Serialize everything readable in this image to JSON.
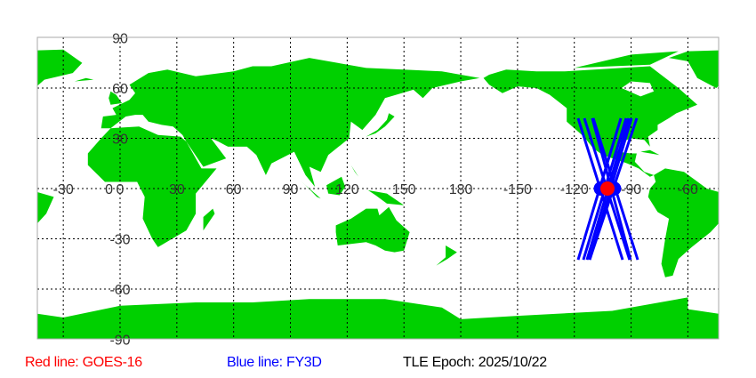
{
  "map": {
    "land_color": "#00d000",
    "grid_color": "#000000",
    "longitude_labels": [
      "-30",
      "0",
      "30",
      "60",
      "90",
      "120",
      "150",
      "180",
      "-150",
      "-120",
      "-90",
      "-60"
    ],
    "longitude_values": [
      -30,
      0,
      30,
      60,
      90,
      120,
      150,
      180,
      210,
      240,
      270,
      300
    ],
    "latitude_labels": [
      "90",
      "60",
      "30",
      "0",
      "-30",
      "-60",
      "-90"
    ],
    "latitude_values": [
      90,
      60,
      30,
      0,
      -30,
      -60,
      -90
    ]
  },
  "satellites": [
    {
      "name": "GOES-16",
      "color": "#ff0000",
      "lon": -102.5,
      "lat": 0
    },
    {
      "name": "FY3D",
      "color": "#0000ff",
      "lon": -106,
      "lat": 0
    },
    {
      "name": "FY3D",
      "color": "#0000ff",
      "lon": -99,
      "lat": 0
    }
  ],
  "orbit_tracks": {
    "color": "#0000ff",
    "segments": [
      [
        [
          -118,
          42
        ],
        [
          -94.5,
          -42.5
        ]
      ],
      [
        [
          -114.7,
          42
        ],
        [
          -90.8,
          -42.5
        ]
      ],
      [
        [
          -110.5,
          42
        ],
        [
          -90.3,
          -42.5
        ]
      ],
      [
        [
          -110,
          42
        ],
        [
          -86.5,
          -42.5
        ]
      ],
      [
        [
          -95.4,
          42
        ],
        [
          -118,
          -42.5
        ]
      ],
      [
        [
          -92.6,
          42
        ],
        [
          -115.2,
          -42.5
        ]
      ],
      [
        [
          -91.2,
          42
        ],
        [
          -113.3,
          -42.5
        ]
      ],
      [
        [
          -89.8,
          42
        ],
        [
          -111.9,
          -42.5
        ]
      ],
      [
        [
          -87,
          42
        ],
        [
          -111.9,
          -42.5
        ]
      ]
    ]
  },
  "legend": {
    "red_label": "Red line: GOES-16",
    "red_color": "#ff0000",
    "blue_label": "Blue line: FY3D",
    "blue_color": "#0000ff",
    "epoch_label": "TLE Epoch: 2025/10/22"
  }
}
